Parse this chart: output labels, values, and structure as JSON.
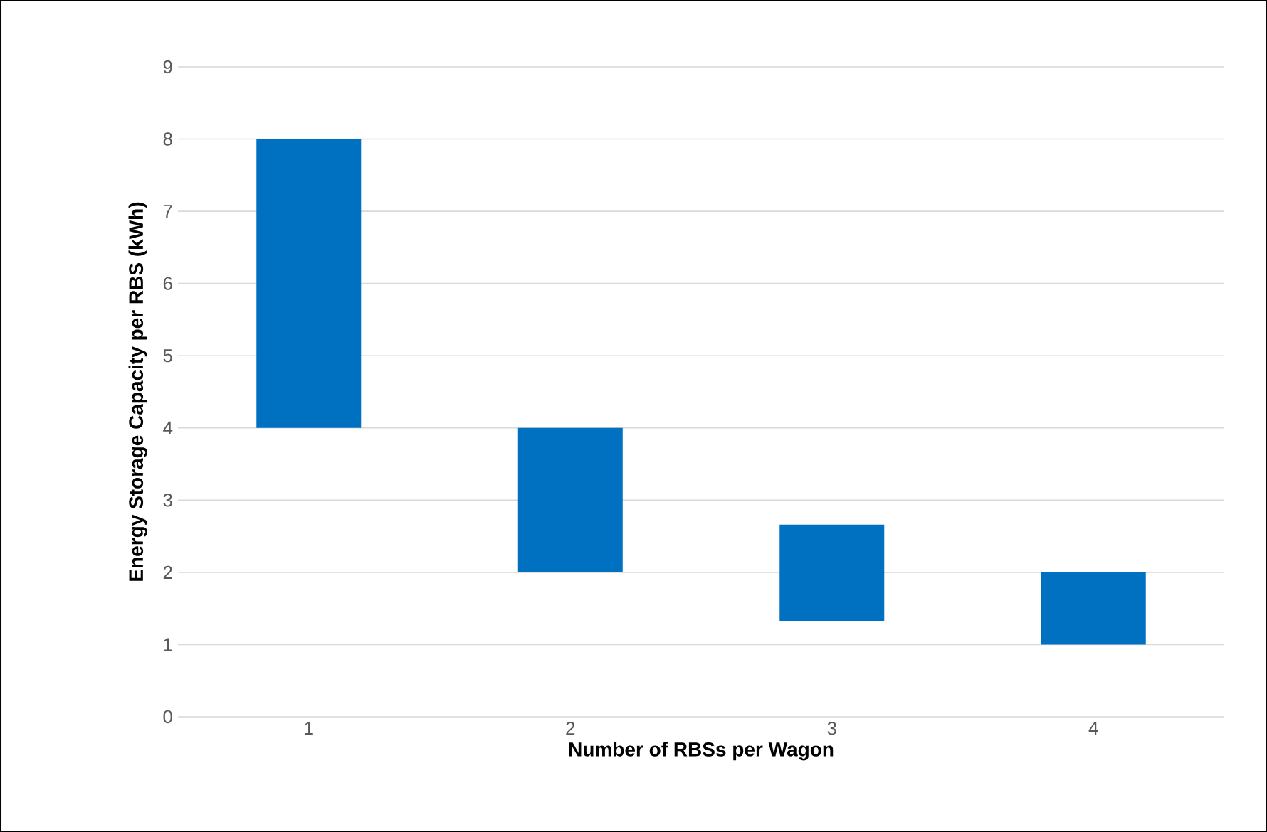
{
  "chart_data": {
    "type": "bar",
    "xlabel": "Number of RBSs per Wagon",
    "ylabel": "Energy Storage Capacity per RBS (kWh)",
    "categories": [
      "1",
      "2",
      "3",
      "4"
    ],
    "values": [
      4,
      2,
      1.33,
      1
    ],
    "base": [
      4,
      2,
      1.33,
      1
    ],
    "color": "#0070c0",
    "ylim": [
      0,
      9
    ],
    "yticks": [
      0,
      1,
      2,
      3,
      4,
      5,
      6,
      7,
      8,
      9
    ],
    "grid": "y"
  }
}
